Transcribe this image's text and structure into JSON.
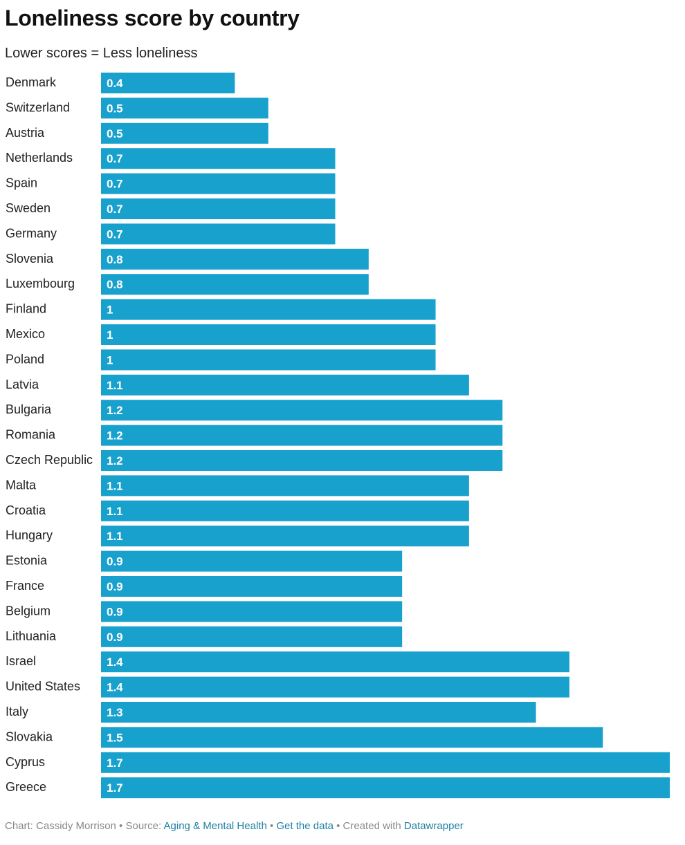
{
  "chart_data": {
    "type": "bar",
    "orientation": "horizontal",
    "title": "Loneliness score by country",
    "subtitle": "Lower scores = Less loneliness",
    "categories": [
      "Denmark",
      "Switzerland",
      "Austria",
      "Netherlands",
      "Spain",
      "Sweden",
      "Germany",
      "Slovenia",
      "Luxembourg",
      "Finland",
      "Mexico",
      "Poland",
      "Latvia",
      "Bulgaria",
      "Romania",
      "Czech Republic",
      "Malta",
      "Croatia",
      "Hungary",
      "Estonia",
      "France",
      "Belgium",
      "Lithuania",
      "Israel",
      "United States",
      "Italy",
      "Slovakia",
      "Cyprus",
      "Greece"
    ],
    "values": [
      0.4,
      0.5,
      0.5,
      0.7,
      0.7,
      0.7,
      0.7,
      0.8,
      0.8,
      1,
      1,
      1,
      1.1,
      1.2,
      1.2,
      1.2,
      1.1,
      1.1,
      1.1,
      0.9,
      0.9,
      0.9,
      0.9,
      1.4,
      1.4,
      1.3,
      1.5,
      1.7,
      1.7
    ],
    "xlim": [
      0,
      1.7
    ],
    "xlabel": "",
    "ylabel": "",
    "grid": false,
    "bar_color": "#18a1cd",
    "label_color": "#ffffff"
  },
  "footer": {
    "chart_prefix": "Chart: Cassidy Morrison",
    "separator": " • ",
    "source_prefix": "Source: ",
    "source_link": "Aging & Mental Health",
    "data_link": "Get the data",
    "created_prefix": "Created with ",
    "created_link": "Datawrapper"
  }
}
